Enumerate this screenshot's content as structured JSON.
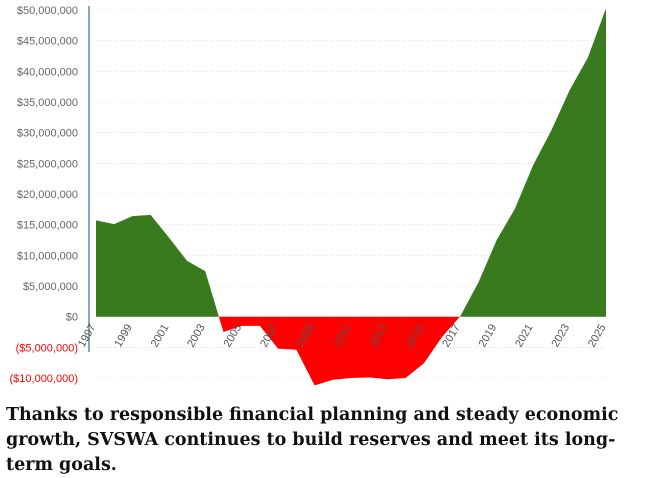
{
  "chart_data": {
    "type": "area",
    "title": "",
    "xlabel": "",
    "ylabel": "",
    "x": [
      1997,
      1998,
      1999,
      2000,
      2001,
      2002,
      2003,
      2004,
      2005,
      2006,
      2007,
      2008,
      2009,
      2010,
      2011,
      2012,
      2013,
      2014,
      2015,
      2016,
      2017,
      2018,
      2019,
      2020,
      2021,
      2022,
      2023,
      2024,
      2025
    ],
    "series": [
      {
        "values": [
          15700000,
          15100000,
          16400000,
          16600000,
          12900000,
          9100000,
          7400000,
          -2500000,
          -1500000,
          -1500000,
          -5200000,
          -5400000,
          -11200000,
          -10300000,
          -10000000,
          -9900000,
          -10200000,
          -10000000,
          -7600000,
          -3300000,
          100000,
          5600000,
          12500000,
          17600000,
          24700000,
          30400000,
          36900000,
          42200000,
          50300000
        ]
      }
    ],
    "ylim": [
      -10000000,
      50000000
    ],
    "yticks": [
      {
        "value": 50000000,
        "label": "$50,000,000"
      },
      {
        "value": 45000000,
        "label": "$45,000,000"
      },
      {
        "value": 40000000,
        "label": "$40,000,000"
      },
      {
        "value": 35000000,
        "label": "$35,000,000"
      },
      {
        "value": 30000000,
        "label": "$30,000,000"
      },
      {
        "value": 25000000,
        "label": "$25,000,000"
      },
      {
        "value": 20000000,
        "label": "$20,000,000"
      },
      {
        "value": 15000000,
        "label": "$15,000,000"
      },
      {
        "value": 10000000,
        "label": "$10,000,000"
      },
      {
        "value": 5000000,
        "label": "$5,000,000"
      },
      {
        "value": 0,
        "label": "$0"
      },
      {
        "value": -5000000,
        "label": "($5,000,000)"
      },
      {
        "value": -10000000,
        "label": "($10,000,000)"
      }
    ],
    "xticks": [
      "1997",
      "1999",
      "2001",
      "2003",
      "2005",
      "2007",
      "2009",
      "2011",
      "2013",
      "2015",
      "2017",
      "2019",
      "2021",
      "2023",
      "2025"
    ],
    "grid": true,
    "colors": {
      "positive": "#3a7a1e",
      "negative": "#ff0000",
      "grid": "#cccccc",
      "tick_positive": "#666666",
      "tick_negative": "#ff0000",
      "axis": "#3d6b8c"
    }
  },
  "caption": "Thanks to responsible financial planning and steady economic growth, SVSWA continues to build reserves and meet its long-term goals."
}
